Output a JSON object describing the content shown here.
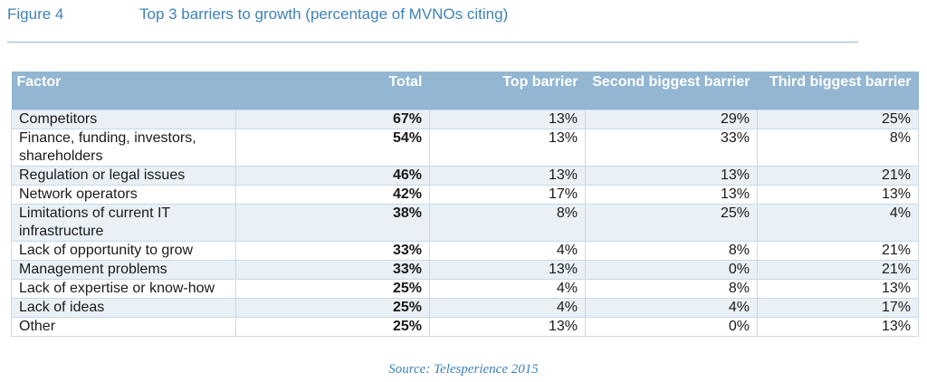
{
  "figure": {
    "label": "Figure 4",
    "title": "Top 3 barriers to growth (percentage of MVNOs citing)"
  },
  "table": {
    "columns": [
      "Factor",
      "Total",
      "Top barrier",
      "Second biggest barrier",
      "Third biggest barrier"
    ],
    "rows": [
      {
        "factor": "Competitors",
        "total": "67%",
        "top": "13%",
        "second": "29%",
        "third": "25%"
      },
      {
        "factor": "Finance, funding, investors, shareholders",
        "total": "54%",
        "top": "13%",
        "second": "33%",
        "third": "8%"
      },
      {
        "factor": "Regulation or legal issues",
        "total": "46%",
        "top": "13%",
        "second": "13%",
        "third": "21%"
      },
      {
        "factor": "Network operators",
        "total": "42%",
        "top": "17%",
        "second": "13%",
        "third": "13%"
      },
      {
        "factor": "Limitations of current IT infrastructure",
        "total": "38%",
        "top": "8%",
        "second": "25%",
        "third": "4%"
      },
      {
        "factor": "Lack of opportunity to grow",
        "total": "33%",
        "top": "4%",
        "second": "8%",
        "third": "21%"
      },
      {
        "factor": "Management problems",
        "total": "33%",
        "top": "13%",
        "second": "0%",
        "third": "21%"
      },
      {
        "factor": "Lack of expertise or know-how",
        "total": "25%",
        "top": "4%",
        "second": "8%",
        "third": "13%"
      },
      {
        "factor": "Lack of ideas",
        "total": "25%",
        "top": "4%",
        "second": "4%",
        "third": "17%"
      },
      {
        "factor": "Other",
        "total": "25%",
        "top": "13%",
        "second": "0%",
        "third": "13%"
      }
    ]
  },
  "source": "Source: Telesperience 2015",
  "colors": {
    "title": "#3f82b8",
    "header_bg": "#93b6d2",
    "stripe": "#e9f0f6"
  }
}
